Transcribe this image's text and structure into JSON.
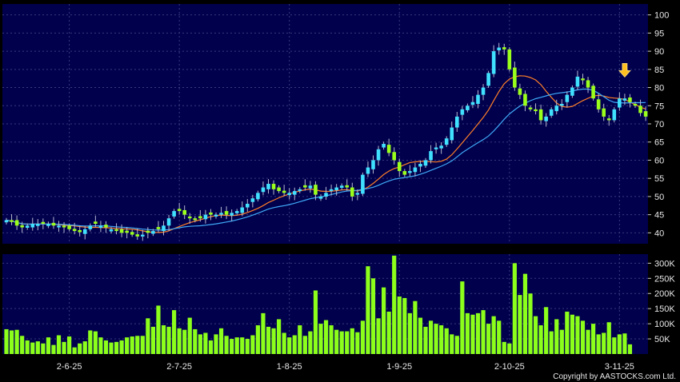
{
  "copyright": "Copyright by AASTOCKS.com Ltd.",
  "colors": {
    "background": "#000000",
    "panel": "#00004d",
    "grid": "#3a3a7a",
    "candle_up": "#40e0ff",
    "candle_down": "#9aff1a",
    "ma_short": "#ff7f27",
    "ma_long": "#3fa9f5",
    "volume": "#8cff1a",
    "marker": "#ffc020"
  },
  "chart_data": [
    {
      "type": "candlestick",
      "title": "",
      "y_ticks": [
        40,
        45,
        50,
        55,
        60,
        65,
        70,
        75,
        80,
        85,
        90,
        95,
        100
      ],
      "ylim": [
        37,
        103
      ],
      "x_tick_labels": [
        "2-6-25",
        "2-7-25",
        "1-8-25",
        "1-9-25",
        "2-10-25",
        "3-11-25"
      ],
      "x_tick_index": [
        12,
        33,
        54,
        75,
        96,
        117
      ],
      "close": [
        43.5,
        43.0,
        42.0,
        41.5,
        42.0,
        42.5,
        42.5,
        42.5,
        42.5,
        42.0,
        42.0,
        41.5,
        41.0,
        40.5,
        40.2,
        41.0,
        42.0,
        42.5,
        42.0,
        41.5,
        41.0,
        40.5,
        40.0,
        40.0,
        39.5,
        39.0,
        39.5,
        40.0,
        40.5,
        41.0,
        42.0,
        44.0,
        46.0,
        46.0,
        45.0,
        44.0,
        43.5,
        44.0,
        45.0,
        45.0,
        45.0,
        45.5,
        45.0,
        45.5,
        46.0,
        47.0,
        48.0,
        49.5,
        51.0,
        52.5,
        53.5,
        52.0,
        51.5,
        51.0,
        51.0,
        51.5,
        52.0,
        52.5,
        53.0,
        50.5,
        50.0,
        51.0,
        52.0,
        52.5,
        53.0,
        52.5,
        50.0,
        51.0,
        56.0,
        58.0,
        60.0,
        63.0,
        64.5,
        62.0,
        60.0,
        57.0,
        56.0,
        57.0,
        58.0,
        59.0,
        60.0,
        62.5,
        63.5,
        64.0,
        66.0,
        69.0,
        72.0,
        74.0,
        75.0,
        76.0,
        78.0,
        80.0,
        84.0,
        90.0,
        91.0,
        90.5,
        85.0,
        80.0,
        78.0,
        75.0,
        74.0,
        73.5,
        71.0,
        72.0,
        74.0,
        75.0,
        75.5,
        78.0,
        80.0,
        83.0,
        82.0,
        80.0,
        77.0,
        74.0,
        72.0,
        71.0,
        74.0,
        77.0,
        77.0,
        76.0,
        75.0,
        73.0,
        72.0
      ],
      "series": [
        {
          "name": "",
          "kind": "moving-average",
          "color_key": "ma_short"
        },
        {
          "name": "",
          "kind": "moving-average",
          "color_key": "ma_long"
        }
      ],
      "annotation": {
        "kind": "down-arrow",
        "at_index": 118
      }
    },
    {
      "type": "bar",
      "title": "",
      "y_ticks": [
        50000,
        100000,
        150000,
        200000,
        250000,
        300000
      ],
      "y_tick_labels": [
        "50K",
        "100K",
        "150K",
        "200K",
        "250K",
        "300K"
      ],
      "ylim": [
        0,
        330000
      ],
      "values": [
        82000,
        78000,
        80000,
        60000,
        45000,
        38000,
        42000,
        35000,
        55000,
        30000,
        62000,
        40000,
        58000,
        22000,
        35000,
        42000,
        78000,
        75000,
        55000,
        45000,
        38000,
        40000,
        45000,
        55000,
        58000,
        60000,
        60000,
        118000,
        90000,
        160000,
        95000,
        90000,
        145000,
        85000,
        80000,
        120000,
        82000,
        65000,
        70000,
        45000,
        65000,
        85000,
        60000,
        50000,
        55000,
        55000,
        50000,
        62000,
        95000,
        135000,
        90000,
        85000,
        115000,
        70000,
        55000,
        62000,
        95000,
        60000,
        75000,
        210000,
        100000,
        112000,
        95000,
        80000,
        75000,
        75000,
        85000,
        72000,
        110000,
        290000,
        250000,
        118000,
        220000,
        140000,
        325000,
        190000,
        185000,
        135000,
        175000,
        120000,
        90000,
        110000,
        100000,
        95000,
        85000,
        65000,
        60000,
        240000,
        135000,
        130000,
        135000,
        145000,
        100000,
        125000,
        110000,
        40000,
        35000,
        300000,
        195000,
        265000,
        200000,
        125000,
        95000,
        155000,
        75000,
        115000,
        80000,
        140000,
        130000,
        125000,
        110000,
        80000,
        100000,
        65000,
        70000,
        105000,
        55000,
        65000,
        68000,
        32000
      ]
    }
  ]
}
